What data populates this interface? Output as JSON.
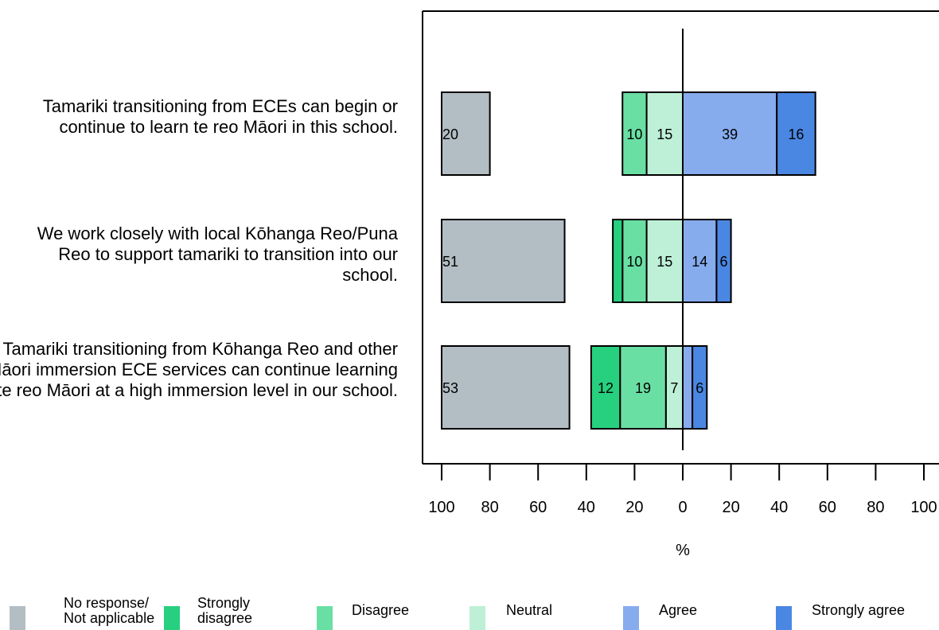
{
  "chart_data": {
    "type": "bar",
    "subtype": "diverging-stacked",
    "categories": [
      "Tamariki transitioning from ECEs can begin or continue to learn te reo Māori in this school.",
      "We work closely with local Kōhanga Reo/Puna Reo to support tamariki to transition into our school.",
      "Tamariki transitioning from Kōhanga Reo and other Māori immersion ECE services can continue learning te reo Māori at a high immersion level in our school."
    ],
    "series": [
      {
        "name": "No response/\nNot applicable",
        "color": "#b3bec4",
        "values": [
          20,
          51,
          53
        ],
        "labels": [
          "20",
          "51",
          "53"
        ]
      },
      {
        "name": "Strongly\ndisagree",
        "color": "#27d07f",
        "values": [
          0,
          4,
          12
        ],
        "labels": [
          "",
          "",
          "12"
        ]
      },
      {
        "name": "Disagree",
        "color": "#6adfa4",
        "values": [
          10,
          10,
          19
        ],
        "labels": [
          "10",
          "10",
          "19"
        ]
      },
      {
        "name": "Neutral",
        "color": "#bdf0d6",
        "values": [
          15,
          15,
          7
        ],
        "labels": [
          "15",
          "15",
          "7"
        ]
      },
      {
        "name": "Agree",
        "color": "#86acee",
        "values": [
          39,
          14,
          4
        ],
        "labels": [
          "39",
          "14",
          ""
        ]
      },
      {
        "name": "Strongly agree",
        "color": "#4a87e3",
        "values": [
          16,
          6,
          6
        ],
        "labels": [
          "16",
          "6",
          "6"
        ]
      }
    ],
    "xlabel": "%",
    "ylabel": "",
    "xlim": [
      -100,
      100
    ],
    "xticks": [
      "100",
      "80",
      "60",
      "40",
      "20",
      "0",
      "20",
      "40",
      "60",
      "80",
      "100"
    ],
    "legend_position": "bottom"
  }
}
